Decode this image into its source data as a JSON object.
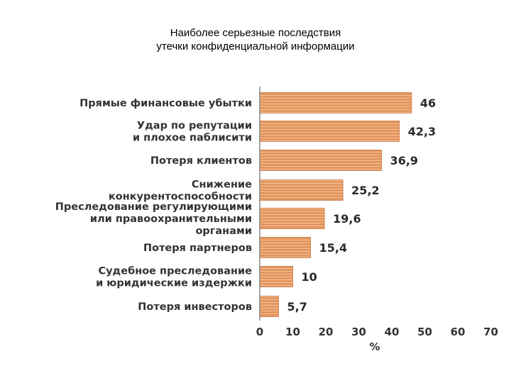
{
  "slide": {
    "title_line1": "Наиболее серьезные последствия",
    "title_line2": "утечки конфиденциальной информации"
  },
  "chart_data": {
    "type": "bar",
    "orientation": "horizontal",
    "title": "",
    "xlabel": "%",
    "ylabel": "",
    "xlim": [
      0,
      70
    ],
    "x_ticks": [
      "0",
      "10",
      "20",
      "30",
      "40",
      "50",
      "60",
      "70"
    ],
    "grid": false,
    "bar_color": "#E4955E",
    "categories": [
      [
        "Прямые финансовые убытки"
      ],
      [
        "Удар по репутации",
        "и плохое паблисити"
      ],
      [
        "Потеря клиентов"
      ],
      [
        "Снижение",
        "конкурентоспособности"
      ],
      [
        "Преследование регулирующими",
        "или правоохранительными",
        "органами"
      ],
      [
        "Потеря партнеров"
      ],
      [
        "Судебное преследование",
        "и юридические издержки"
      ],
      [
        "Потеря инвесторов"
      ]
    ],
    "values": [
      46,
      42.3,
      36.9,
      25.2,
      19.6,
      15.4,
      10,
      5.7
    ],
    "value_labels": [
      "46",
      "42,3",
      "36,9",
      "25,2",
      "19,6",
      "15,4",
      "10",
      "5,7"
    ]
  }
}
